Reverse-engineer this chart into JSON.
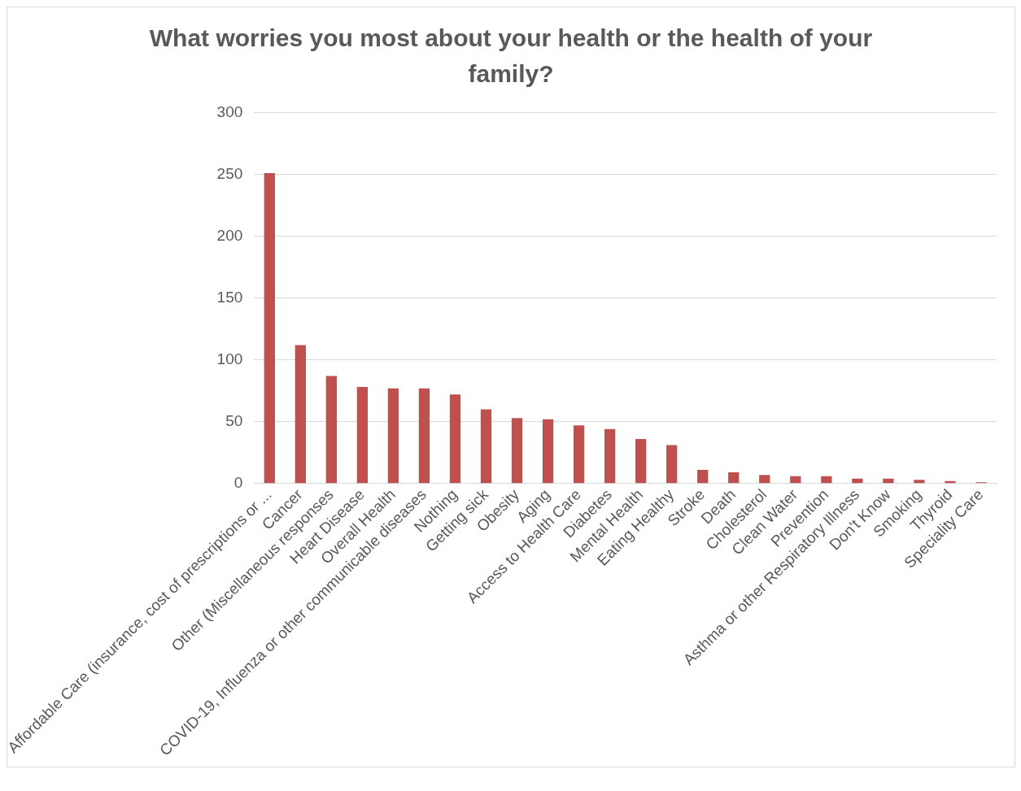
{
  "chart_data": {
    "type": "bar",
    "title": "What worries you most about your health or the health of your family?",
    "categories": [
      "Affordable Care (insurance, cost of prescriptions or ...",
      "Cancer",
      "Other (Miscellaneous responses",
      "Heart Disease",
      "Overall Health",
      "COVID-19, Influenza or other communicable diseases",
      "Nothing",
      "Getting sick",
      "Obesity",
      "Aging",
      "Access to Health Care",
      "Diabetes",
      "Mental Health",
      "Eating Healthy",
      "Stroke",
      "Death",
      "Cholesterol",
      "Clean Water",
      "Prevention",
      "Asthma or other Respiratory Illness",
      "Don't Know",
      "Smoking",
      "Thyroid",
      "Speciality Care"
    ],
    "values": [
      251,
      112,
      87,
      78,
      77,
      77,
      72,
      60,
      53,
      52,
      47,
      44,
      36,
      31,
      11,
      9,
      7,
      6,
      6,
      4,
      4,
      3,
      2,
      1
    ],
    "color": "#c0504d",
    "ylim": [
      0,
      300
    ],
    "yticks": [
      0,
      50,
      100,
      150,
      200,
      250,
      300
    ],
    "grid": "y"
  }
}
